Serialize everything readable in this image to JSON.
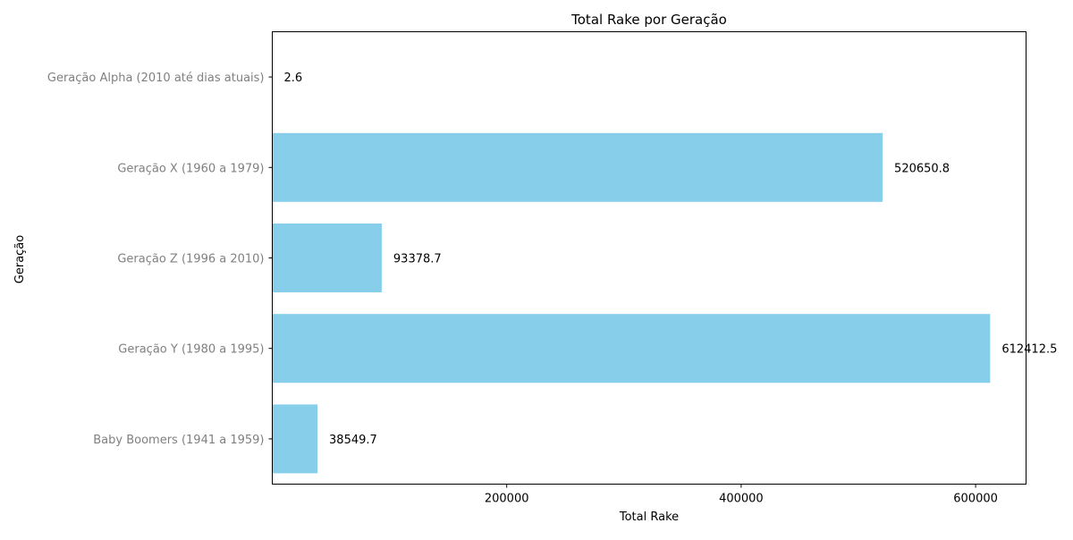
{
  "chart_data": {
    "type": "bar",
    "orientation": "horizontal",
    "title": "Total Rake por Geração",
    "xlabel": "Total Rake",
    "ylabel": "Geração",
    "categories": [
      "Geração Alpha (2010 até dias atuais)",
      "Geração X (1960 a 1979)",
      "Geração Z (1996 a 2010)",
      "Geração Y (1980 a 1995)",
      "Baby Boomers (1941 a 1959)"
    ],
    "values": [
      2.6,
      520650.8,
      93378.7,
      612412.5,
      38549.7
    ],
    "data_labels": [
      "2.6",
      "520650.8",
      "93378.7",
      "612412.5",
      "38549.7"
    ],
    "xlim": [
      0,
      643033
    ],
    "xticks": [
      200000,
      400000,
      600000
    ],
    "xtick_labels": [
      "200000",
      "400000",
      "600000"
    ],
    "bar_color": "#87ceeb",
    "category_label_color": "#808080",
    "grid": false
  }
}
